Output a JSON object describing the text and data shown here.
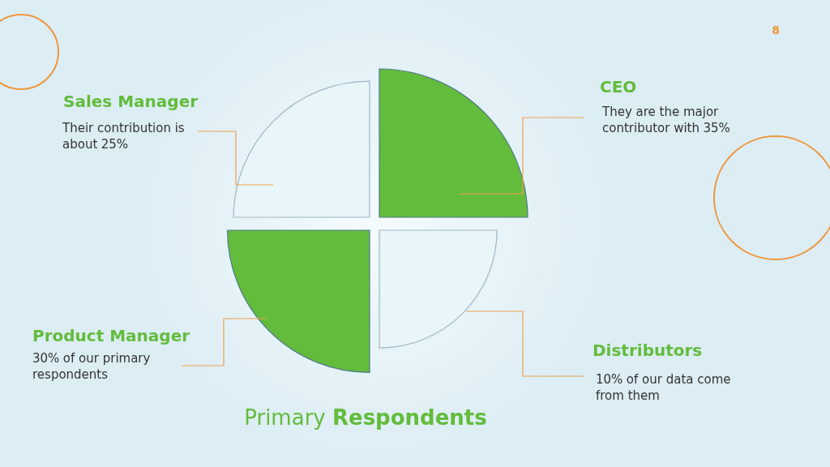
{
  "chart_data": {
    "type": "other",
    "title": "Primary Respondents",
    "categories": [
      "CEO",
      "Distributors",
      "Product Manager",
      "Sales Manager"
    ],
    "values": [
      35,
      10,
      30,
      25
    ],
    "value_labels": [
      "35%",
      "10%",
      "30%",
      "25%"
    ],
    "colors": [
      "#63bc3c",
      "#e8f5f9",
      "#63bc3c",
      "#e8f5f9"
    ],
    "annotations": [
      "They are the major contributor with",
      "of our data come from them",
      "of our primary respondents",
      "Their contribution is about",
      "8"
    ]
  }
}
